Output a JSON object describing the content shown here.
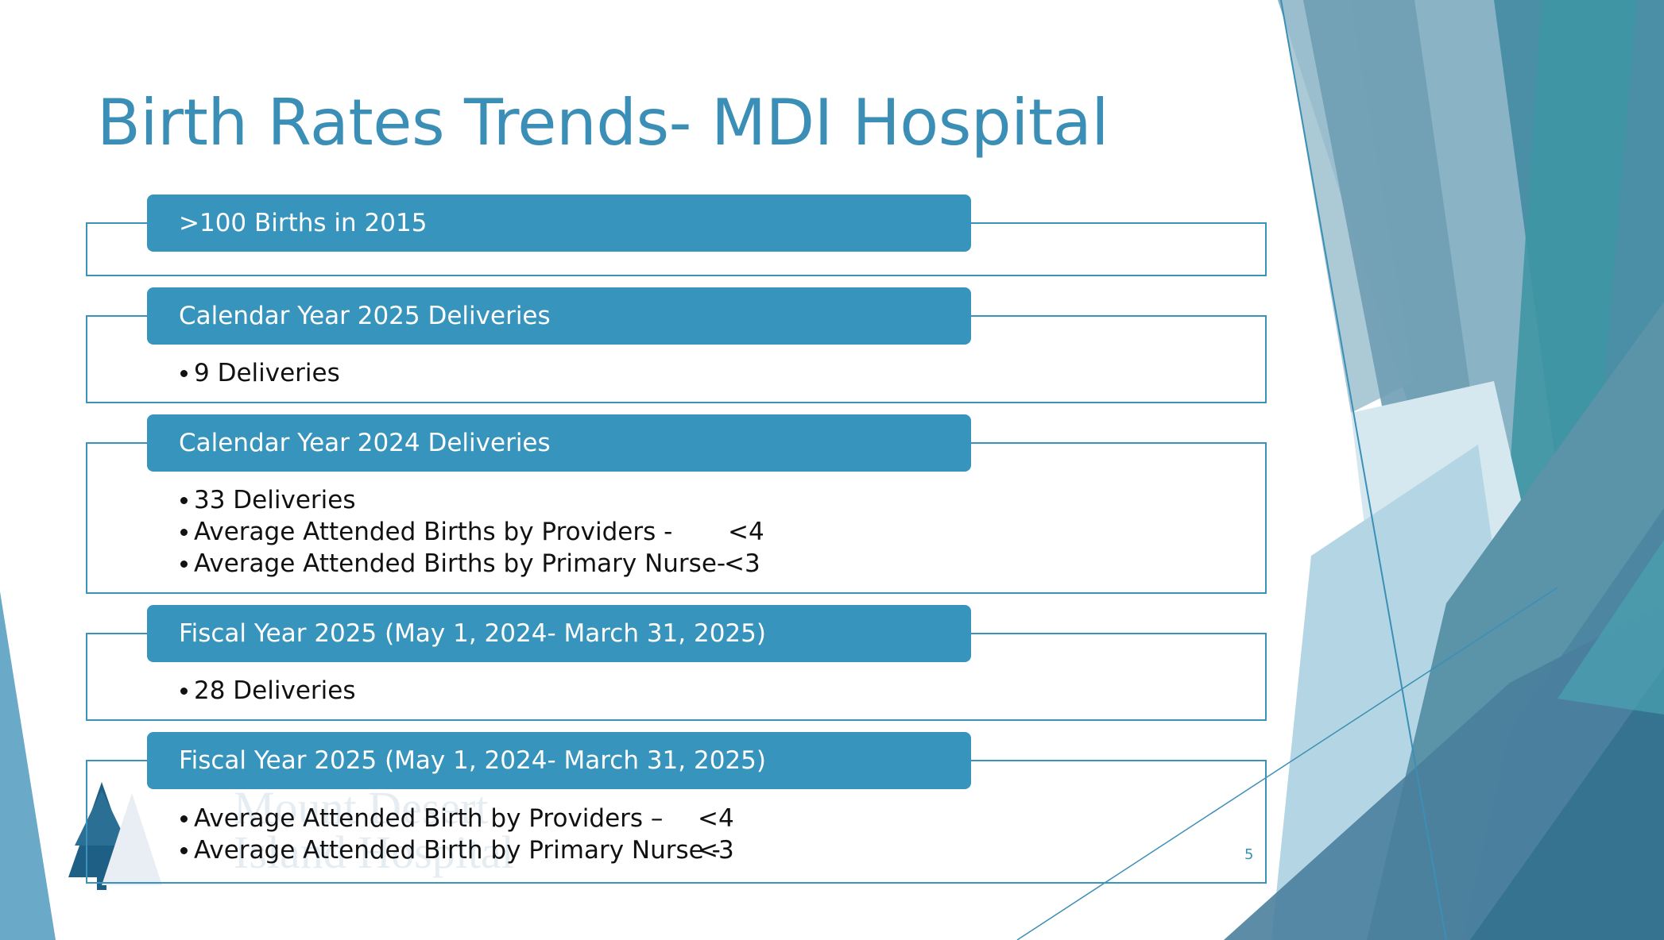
{
  "slide": {
    "title": "Birth Rates Trends- MDI Hospital",
    "page_number": "5",
    "logo_text_line1": "Mount Desert",
    "logo_text_line2": "Island Hospital",
    "colors": {
      "title": "#3b8fb6",
      "header_bar": "#3794bc",
      "frame_border": "#3b93bb",
      "header_text": "#ffffff",
      "body_text": "#111111"
    }
  },
  "sections": [
    {
      "header": ">100 Births in 2015",
      "items": []
    },
    {
      "header": "Calendar Year 2025 Deliveries",
      "items": [
        {
          "label": "9 Deliveries",
          "value": ""
        }
      ]
    },
    {
      "header": "Calendar Year 2024 Deliveries",
      "items": [
        {
          "label": "33 Deliveries",
          "value": ""
        },
        {
          "label": "Average Attended Births by Providers -",
          "value": "<4"
        },
        {
          "label": "Average Attended Births by Primary Nurse-",
          "value": "<3"
        }
      ]
    },
    {
      "header": "Fiscal Year 2025 (May 1, 2024- March 31, 2025)",
      "items": [
        {
          "label": "28 Deliveries",
          "value": ""
        }
      ]
    },
    {
      "header": "Fiscal Year 2025 (May 1, 2024- March 31, 2025)",
      "items": [
        {
          "label": "Average Attended Birth by Providers –",
          "value": "<4"
        },
        {
          "label": "Average Attended Birth by Primary Nurse -",
          "value": "<3"
        }
      ]
    }
  ]
}
